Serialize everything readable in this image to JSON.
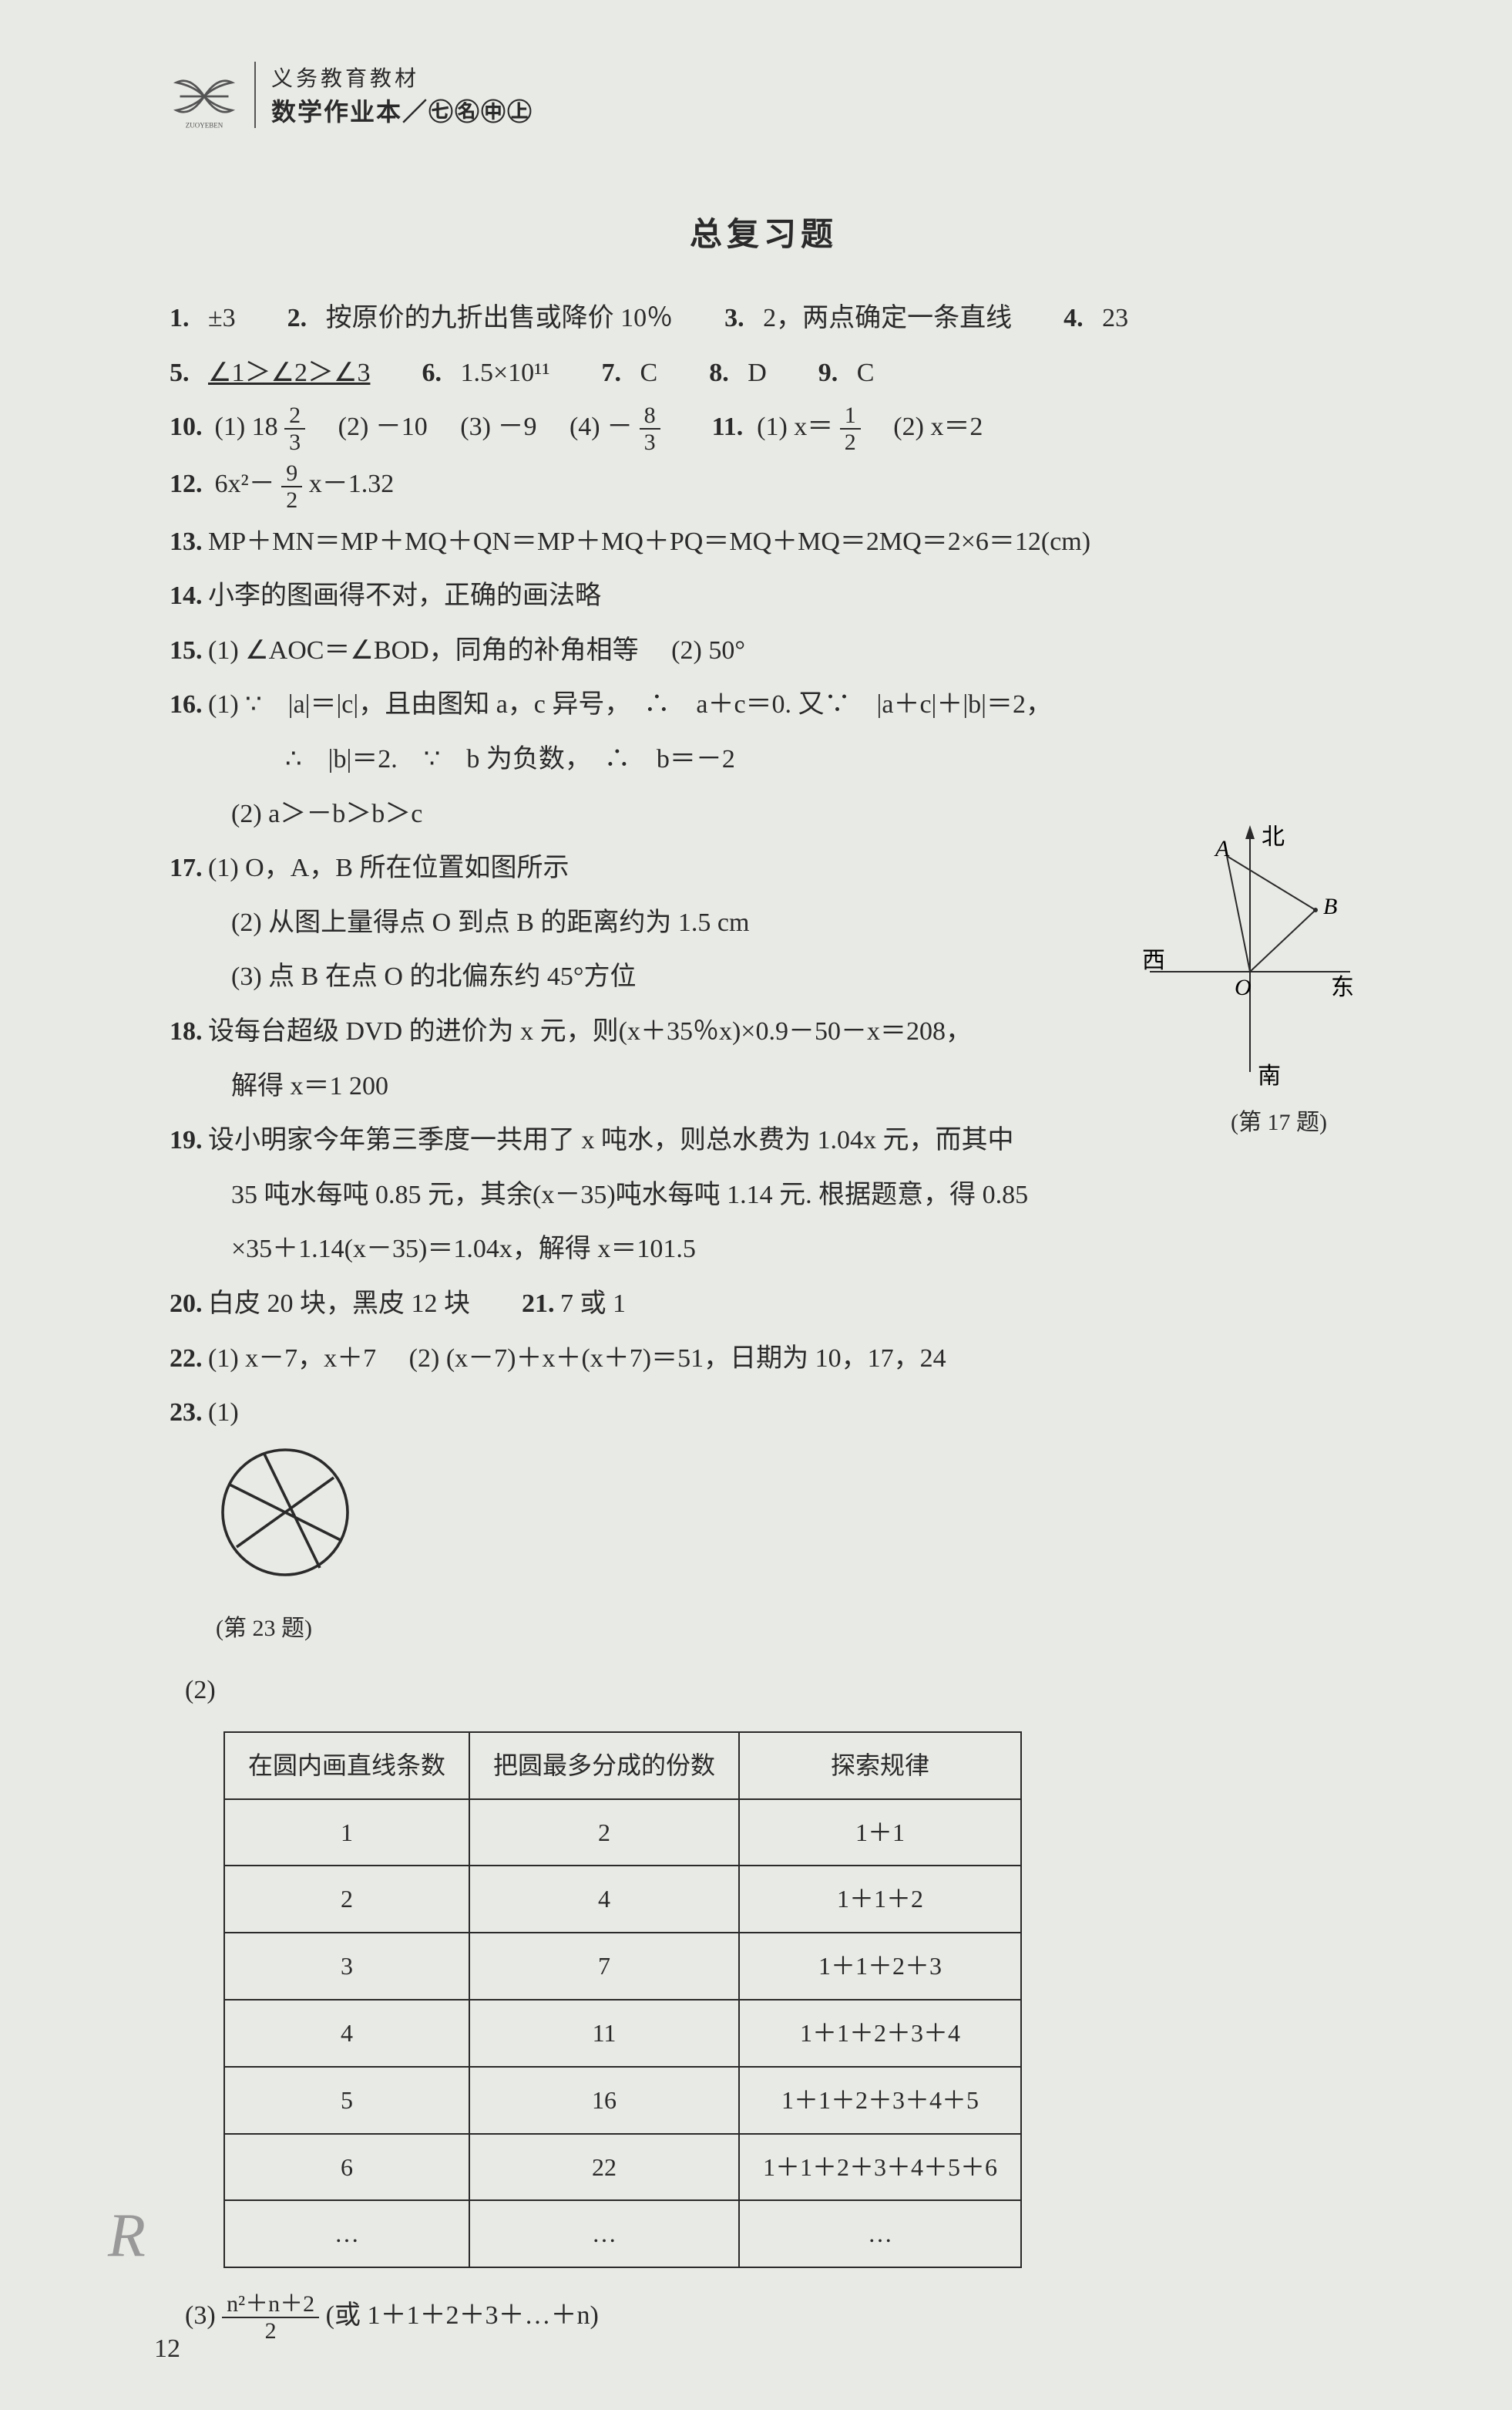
{
  "header": {
    "small": "义务教育教材",
    "main": "数学作业本／㊆㊔㊥㊤"
  },
  "section_title": "总复习题",
  "answers": {
    "q1": "±3",
    "q2": "按原价的九折出售或降价 10％",
    "q3": "2，两点确定一条直线",
    "q4": "23",
    "q5": "∠1＞∠2＞∠3",
    "q6": "1.5×10¹¹",
    "q7": "C",
    "q8": "D",
    "q9": "C",
    "q10_1_pre": "18",
    "q10_1_num": "2",
    "q10_1_den": "3",
    "q10_2": "－10",
    "q10_3": "－9",
    "q10_4_pre": "－",
    "q10_4_num": "8",
    "q10_4_den": "3",
    "q11_1_pre": "x＝",
    "q11_1_num": "1",
    "q11_1_den": "2",
    "q11_2": "x＝2",
    "q12_pre": "6x²－",
    "q12_num": "9",
    "q12_den": "2",
    "q12_post": "x－1.32",
    "q13": "MP＋MN＝MP＋MQ＋QN＝MP＋MQ＋PQ＝MQ＋MQ＝2MQ＝2×6＝12(cm)",
    "q14": "小李的图画得不对，正确的画法略",
    "q15_1": "∠AOC＝∠BOD，同角的补角相等",
    "q15_2": "50°",
    "q16_1a": "∵　|a|＝|c|，且由图知 a，c 异号，　∴　a＋c＝0. 又∵　|a＋c|＋|b|＝2，",
    "q16_1b": "∴　|b|＝2.　∵　b 为负数，　∴　b＝－2",
    "q16_2": "a＞－b＞b＞c",
    "q17_1": "O，A，B 所在位置如图所示",
    "q17_2": "从图上量得点 O 到点 B 的距离约为 1.5 cm",
    "q17_3": "点 B 在点 O 的北偏东约 45°方位",
    "q18_a": "设每台超级 DVD 的进价为 x 元，则(x＋35％x)×0.9－50－x＝208，",
    "q18_b": "解得 x＝1 200",
    "q19_a": "设小明家今年第三季度一共用了 x 吨水，则总水费为 1.04x 元，而其中",
    "q19_b": "35 吨水每吨 0.85 元，其余(x－35)吨水每吨 1.14 元. 根据题意，得 0.85",
    "q19_c": "×35＋1.14(x－35)＝1.04x，解得 x＝101.5",
    "q20": "白皮 20 块，黑皮 12 块",
    "q21": "7 或 1",
    "q22_1": "x－7，x＋7",
    "q22_2": "(x－7)＋x＋(x＋7)＝51，日期为 10，17，24",
    "q23_label": "(1)",
    "q23_caption": "(第 23 题)",
    "q23_3_num": "n²＋n＋2",
    "q23_3_den": "2",
    "q23_3_post": "(或 1＋1＋2＋3＋…＋n)"
  },
  "diagram_labels": {
    "north": "北",
    "south": "南",
    "east": "东",
    "west": "西",
    "A": "A",
    "B": "B",
    "O": "O",
    "caption": "(第 17 题)"
  },
  "table": {
    "headers": [
      "在圆内画直线条数",
      "把圆最多分成的份数",
      "探索规律"
    ],
    "rows": [
      [
        "1",
        "2",
        "1＋1"
      ],
      [
        "2",
        "4",
        "1＋1＋2"
      ],
      [
        "3",
        "7",
        "1＋1＋2＋3"
      ],
      [
        "4",
        "11",
        "1＋1＋2＋3＋4"
      ],
      [
        "5",
        "16",
        "1＋1＋2＋3＋4＋5"
      ],
      [
        "6",
        "22",
        "1＋1＋2＋3＋4＋5＋6"
      ],
      [
        "…",
        "…",
        "…"
      ]
    ]
  },
  "page_num": "12",
  "bottom_logo": "R"
}
